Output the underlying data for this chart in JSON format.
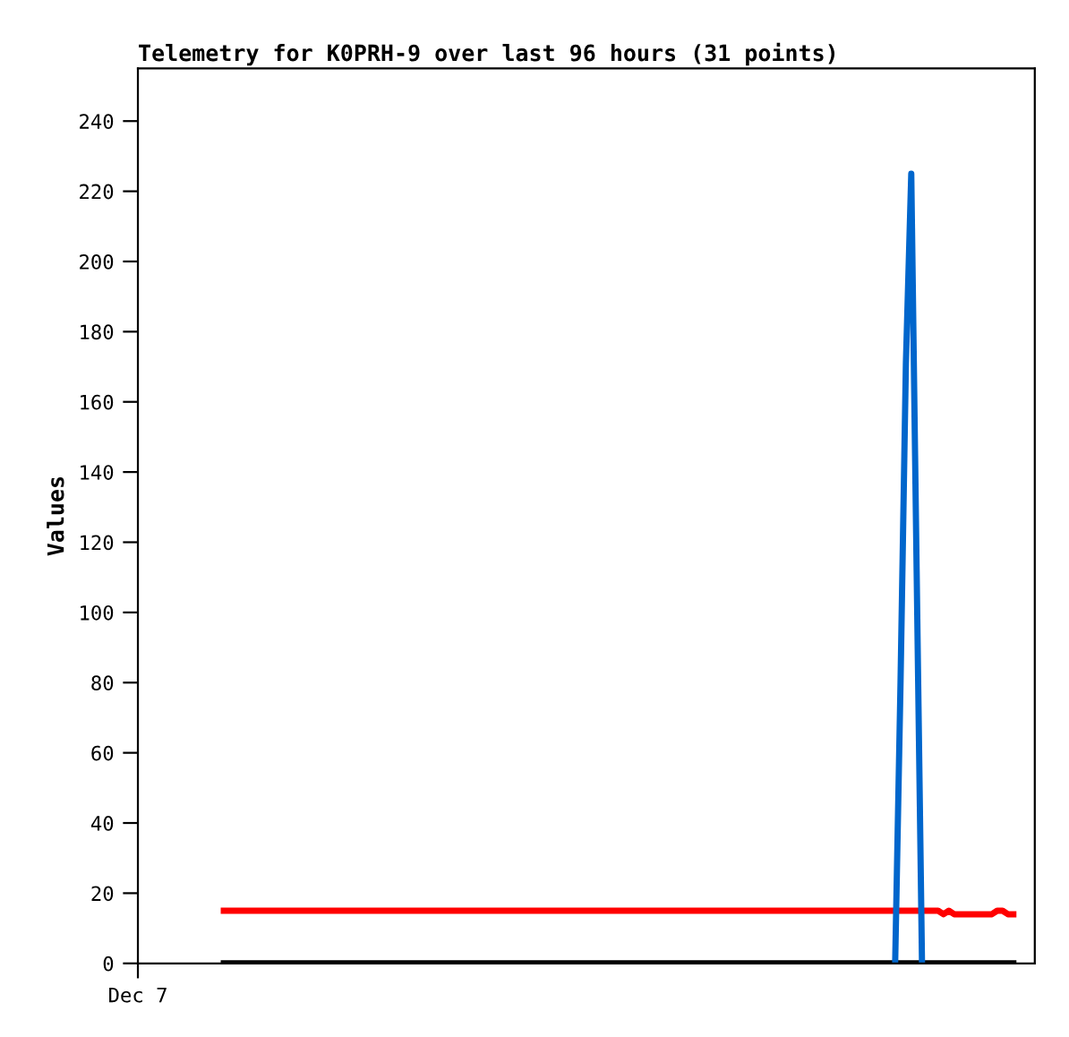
{
  "chart_data": {
    "type": "line",
    "title": "Telemetry for K0PRH-9 over last 96 hours (31 points)",
    "ylabel": "Values",
    "categories": [
      "Dec 7",
      null,
      null,
      null,
      null,
      null,
      null,
      null,
      null,
      null,
      null,
      null,
      null,
      null,
      null,
      null,
      null,
      null,
      null,
      null,
      null,
      null,
      null,
      null,
      null,
      null,
      null,
      null,
      null,
      null,
      null,
      null,
      null,
      null,
      null,
      null,
      null,
      null,
      null,
      null,
      null,
      null,
      null,
      null,
      null,
      null,
      null,
      null,
      null,
      null,
      null,
      null,
      null,
      null,
      null,
      null,
      null,
      null,
      null,
      null,
      null,
      null,
      null,
      null,
      null,
      null,
      null,
      null,
      null,
      null,
      null,
      null,
      null,
      null,
      null,
      null,
      null,
      null,
      null,
      null,
      null,
      null,
      null,
      null,
      null,
      null,
      null,
      null,
      null,
      null,
      null,
      null,
      null,
      null,
      null,
      null,
      null,
      null,
      null,
      null,
      null,
      null,
      null,
      null,
      null,
      null,
      null,
      null,
      null,
      null,
      null,
      null,
      null,
      null,
      null,
      null,
      null,
      null,
      null,
      null,
      null,
      null,
      null,
      null,
      null,
      null,
      null,
      null,
      null,
      null,
      null,
      null,
      null,
      null,
      null,
      null,
      null,
      null,
      null,
      null,
      null,
      null,
      null,
      null,
      null,
      null,
      null,
      null,
      null,
      null,
      null,
      null,
      null,
      null,
      null,
      null,
      null,
      null,
      null,
      null,
      null,
      null,
      null,
      null,
      null,
      null,
      null,
      null
    ],
    "ylim": [
      0,
      255
    ],
    "yticks": [
      0,
      20,
      40,
      60,
      80,
      100,
      120,
      140,
      160,
      180,
      200,
      220,
      240
    ],
    "grid": false,
    "legend": false,
    "series": [
      {
        "color": "#000000",
        "values": [
          null,
          null,
          null,
          null,
          null,
          null,
          null,
          null,
          null,
          null,
          null,
          null,
          null,
          null,
          null,
          null,
          0,
          0,
          0,
          0,
          0,
          0,
          0,
          0,
          0,
          0,
          0,
          0,
          0,
          0,
          0,
          0,
          0,
          0,
          0,
          0,
          0,
          0,
          0,
          0,
          0,
          0,
          0,
          0,
          0,
          0,
          0,
          0,
          0,
          0,
          0,
          0,
          0,
          0,
          0,
          0,
          0,
          0,
          0,
          0,
          0,
          0,
          0,
          0,
          0,
          0,
          0,
          0,
          0,
          0,
          0,
          0,
          0,
          0,
          0,
          0,
          0,
          0,
          0,
          0,
          0,
          0,
          0,
          0,
          0,
          0,
          0,
          0,
          0,
          0,
          0,
          0,
          0,
          0,
          0,
          0,
          0,
          0,
          0,
          0,
          0,
          0,
          0,
          0,
          0,
          0,
          0,
          0,
          0,
          0,
          0,
          0,
          0,
          0,
          0,
          0,
          0,
          0,
          0,
          0,
          0,
          0,
          0,
          0,
          0,
          0,
          0,
          0,
          0,
          0,
          0,
          0,
          0,
          0,
          0,
          0,
          0,
          0,
          0,
          0,
          0,
          0,
          0,
          0,
          0,
          0,
          0,
          0,
          0,
          0,
          0,
          0,
          0,
          0,
          0,
          0,
          0,
          0,
          0,
          0,
          0,
          0,
          0,
          0,
          null,
          null,
          null,
          null
        ]
      },
      {
        "color": "#ff0000",
        "values": [
          null,
          null,
          null,
          null,
          null,
          null,
          null,
          null,
          null,
          null,
          null,
          null,
          null,
          null,
          null,
          null,
          15,
          15,
          15,
          15,
          15,
          15,
          15,
          15,
          15,
          15,
          15,
          15,
          15,
          15,
          15,
          15,
          15,
          15,
          15,
          15,
          15,
          15,
          15,
          15,
          15,
          15,
          15,
          15,
          15,
          15,
          15,
          15,
          15,
          15,
          15,
          15,
          15,
          15,
          15,
          15,
          15,
          15,
          15,
          15,
          15,
          15,
          15,
          15,
          15,
          15,
          15,
          15,
          15,
          15,
          15,
          15,
          15,
          15,
          15,
          15,
          15,
          15,
          15,
          15,
          15,
          15,
          15,
          15,
          15,
          15,
          15,
          15,
          15,
          15,
          15,
          15,
          15,
          15,
          15,
          15,
          15,
          15,
          15,
          15,
          15,
          15,
          15,
          15,
          15,
          15,
          15,
          15,
          15,
          15,
          15,
          15,
          15,
          15,
          15,
          15,
          15,
          15,
          15,
          15,
          15,
          15,
          15,
          15,
          15,
          15,
          15,
          15,
          15,
          15,
          15,
          15,
          15,
          15,
          15,
          15,
          15,
          15,
          15,
          15,
          15,
          15,
          15,
          15,
          15,
          15,
          15,
          15,
          15,
          15,
          14,
          15,
          14,
          14,
          14,
          14,
          14,
          14,
          14,
          14,
          15,
          15,
          14,
          14,
          null,
          null,
          null,
          null
        ]
      },
      {
        "color": "#0066cc",
        "values": [
          null,
          null,
          null,
          null,
          null,
          null,
          null,
          null,
          null,
          null,
          null,
          null,
          null,
          null,
          null,
          null,
          null,
          null,
          null,
          null,
          null,
          null,
          null,
          null,
          null,
          null,
          null,
          null,
          null,
          null,
          null,
          null,
          null,
          null,
          null,
          null,
          null,
          null,
          null,
          null,
          null,
          null,
          null,
          null,
          null,
          null,
          null,
          null,
          null,
          null,
          null,
          null,
          null,
          null,
          null,
          null,
          null,
          null,
          null,
          null,
          null,
          null,
          null,
          null,
          null,
          null,
          null,
          null,
          null,
          null,
          null,
          null,
          null,
          null,
          null,
          null,
          null,
          null,
          null,
          null,
          null,
          null,
          null,
          null,
          null,
          null,
          null,
          null,
          null,
          null,
          null,
          null,
          null,
          null,
          null,
          null,
          null,
          null,
          null,
          null,
          null,
          null,
          null,
          null,
          null,
          null,
          null,
          null,
          null,
          null,
          null,
          null,
          null,
          null,
          null,
          null,
          null,
          null,
          null,
          null,
          null,
          null,
          null,
          null,
          null,
          null,
          null,
          null,
          null,
          null,
          null,
          null,
          null,
          null,
          null,
          null,
          null,
          null,
          null,
          null,
          null,
          0,
          80,
          171,
          225,
          112,
          0,
          null,
          null,
          null,
          null,
          null,
          null,
          null,
          null,
          null,
          null,
          null,
          null,
          null,
          null,
          null,
          null,
          null,
          null,
          null,
          null,
          null
        ]
      }
    ]
  }
}
